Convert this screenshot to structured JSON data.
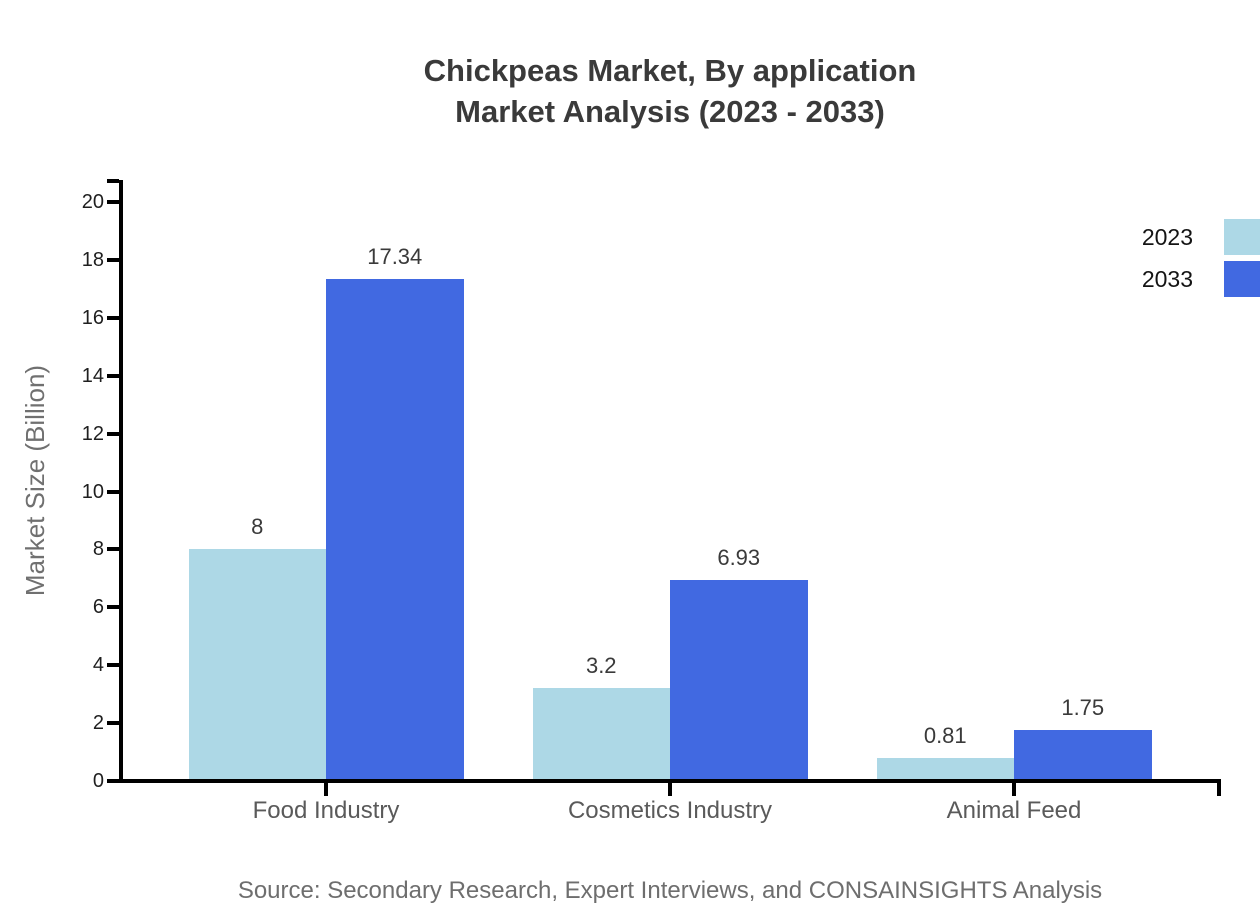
{
  "header": {
    "title_line1": "Chickpeas Market, By application",
    "title_line2": "Market Analysis (2023 - 2033)"
  },
  "chart_data": {
    "type": "bar",
    "title": "Chickpeas Market, By application Market Analysis (2023 - 2033)",
    "categories": [
      "Food Industry",
      "Cosmetics Industry",
      "Animal Feed"
    ],
    "series": [
      {
        "name": "2023",
        "color": "#ADD8E6",
        "values": [
          8,
          3.2,
          0.81
        ],
        "labels": [
          "8",
          "3.2",
          "0.81"
        ]
      },
      {
        "name": "2033",
        "color": "#4169E1",
        "values": [
          17.34,
          6.93,
          1.75
        ],
        "labels": [
          "17.34",
          "6.93",
          "1.75"
        ]
      }
    ],
    "xlabel": "",
    "ylabel": "Market Size (Billion)",
    "ylim": [
      0,
      20
    ],
    "yticks": [
      0,
      2,
      4,
      6,
      8,
      10,
      12,
      14,
      16,
      18,
      20
    ],
    "grid": false,
    "legend_position": "top-right"
  },
  "footer": {
    "source": "Source: Secondary Research, Expert Interviews, and CONSAINSIGHTS Analysis"
  }
}
